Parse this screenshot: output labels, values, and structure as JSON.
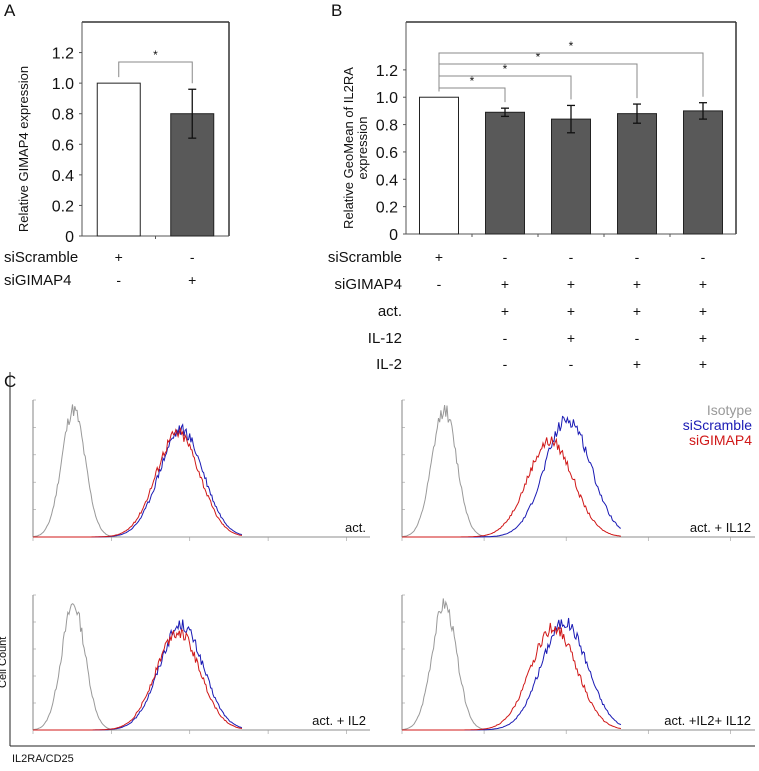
{
  "chart_data": [
    {
      "panel": "A",
      "type": "bar",
      "ylabel": "Relative GIMAP4 expression",
      "ylim": [
        0,
        1.4
      ],
      "yticks": [
        "0",
        "0.2",
        "0.4",
        "0.6",
        "0.8",
        "1.0",
        "1.2"
      ],
      "categories": [
        "siScramble",
        "siGIMAP4"
      ],
      "values": [
        1.0,
        0.8
      ],
      "errors": [
        0,
        0.16
      ],
      "colors": [
        "#ffffff",
        "#595959"
      ],
      "significance": [
        {
          "from": 0,
          "to": 1,
          "label": "*"
        }
      ],
      "condition_rows": [
        {
          "label": "siScramble",
          "marks": [
            "+",
            "-"
          ]
        },
        {
          "label": "siGIMAP4",
          "marks": [
            "-",
            "+"
          ]
        }
      ]
    },
    {
      "panel": "B",
      "type": "bar",
      "ylabel": "Relative GeoMean of IL2RA expression",
      "ylim": [
        0,
        1.55
      ],
      "yticks": [
        "0",
        "0.2",
        "0.4",
        "0.6",
        "0.8",
        "1.0",
        "1.2"
      ],
      "values": [
        1.0,
        0.89,
        0.84,
        0.88,
        0.9
      ],
      "errors": [
        0,
        0.03,
        0.1,
        0.07,
        0.06
      ],
      "colors": [
        "#ffffff",
        "#595959",
        "#595959",
        "#595959",
        "#595959"
      ],
      "significance": [
        {
          "from": 0,
          "to": 1,
          "label": "*"
        },
        {
          "from": 0,
          "to": 2,
          "label": "*"
        },
        {
          "from": 0,
          "to": 3,
          "label": "*"
        },
        {
          "from": 0,
          "to": 4,
          "label": "*"
        }
      ],
      "condition_rows": [
        {
          "label": "siScramble",
          "marks": [
            "+",
            "-",
            "-",
            "-",
            "-"
          ]
        },
        {
          "label": "siGIMAP4",
          "marks": [
            "-",
            "+",
            "+",
            "+",
            "+"
          ]
        },
        {
          "label": "act.",
          "marks": [
            "",
            "+",
            "+",
            "+",
            "+"
          ]
        },
        {
          "label": "IL-12",
          "marks": [
            "",
            "-",
            "+",
            "-",
            "+"
          ]
        },
        {
          "label": "IL-2",
          "marks": [
            "",
            "-",
            "-",
            "+",
            "+"
          ]
        }
      ]
    },
    {
      "panel": "C",
      "type": "line",
      "xlabel": "IL2RA/CD25",
      "ylabel": "Cell Count",
      "legend": [
        {
          "name": "Isotype",
          "color": "#999999"
        },
        {
          "name": "siScramble",
          "color": "#1a1ab4"
        },
        {
          "name": "siGIMAP4",
          "color": "#d01818"
        }
      ],
      "legend_position": "top-right",
      "plots": [
        {
          "label": "act.",
          "isotype_peak": 0.12,
          "scramble_peak": 0.44,
          "gimap4_peak": 0.43,
          "scramble_height": 0.78,
          "gimap4_height": 0.76
        },
        {
          "label": "act. + IL12",
          "isotype_peak": 0.12,
          "scramble_peak": 0.47,
          "gimap4_peak": 0.42,
          "scramble_height": 0.86,
          "gimap4_height": 0.7
        },
        {
          "label": "act. + IL2",
          "isotype_peak": 0.12,
          "scramble_peak": 0.44,
          "gimap4_peak": 0.43,
          "scramble_height": 0.78,
          "gimap4_height": 0.73
        },
        {
          "label": "act. +IL2+ IL12",
          "isotype_peak": 0.12,
          "scramble_peak": 0.46,
          "gimap4_peak": 0.43,
          "scramble_height": 0.8,
          "gimap4_height": 0.76
        }
      ]
    }
  ],
  "panel_labels": [
    "A",
    "B",
    "C"
  ]
}
